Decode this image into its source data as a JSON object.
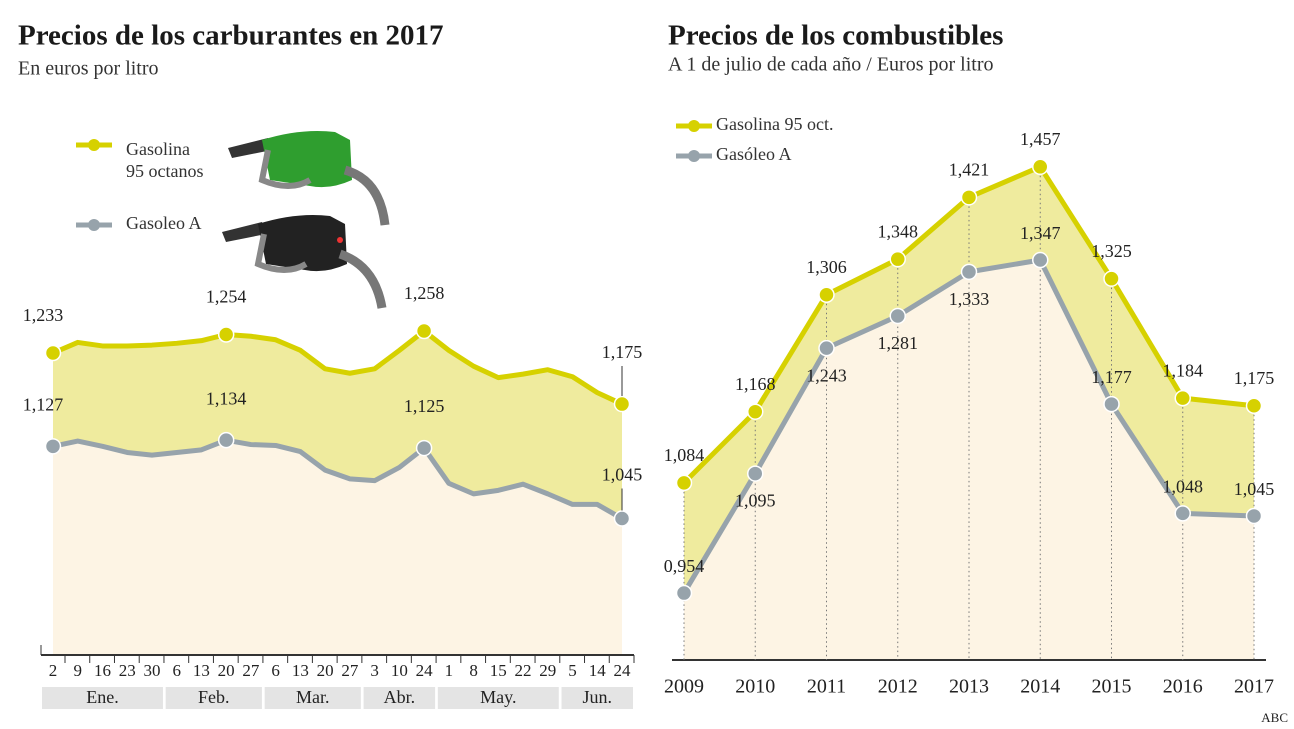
{
  "chart_data": [
    {
      "type": "line",
      "title": "Precios de los carburantes en 2017",
      "subtitle": "En euros por litro",
      "months": [
        {
          "name": "Ene.",
          "days": [
            2,
            9,
            16,
            23,
            30
          ]
        },
        {
          "name": "Feb.",
          "days": [
            6,
            13,
            20,
            27
          ]
        },
        {
          "name": "Mar.",
          "days": [
            6,
            13,
            20,
            27
          ]
        },
        {
          "name": "Abr.",
          "days": [
            3,
            10,
            24
          ]
        },
        {
          "name": "May.",
          "days": [
            1,
            8,
            15,
            22,
            29
          ]
        },
        {
          "name": "Jun.",
          "days": [
            5,
            14,
            24
          ]
        }
      ],
      "series": [
        {
          "name": "Gasolina 95 octanos",
          "color": "#d6d100",
          "values": [
            1.233,
            1.245,
            1.241,
            1.241,
            1.242,
            1.244,
            1.247,
            1.254,
            1.252,
            1.248,
            1.236,
            1.215,
            1.21,
            1.215,
            1.236,
            1.258,
            1.236,
            1.218,
            1.205,
            1.209,
            1.214,
            1.206,
            1.188,
            1.175
          ],
          "value_labels": [
            "1,233",
            null,
            null,
            null,
            null,
            null,
            null,
            "1,254",
            null,
            null,
            null,
            null,
            null,
            null,
            null,
            "1,258",
            null,
            null,
            null,
            null,
            null,
            null,
            null,
            "1,175"
          ]
        },
        {
          "name": "Gasoleo A",
          "color": "#97a3ab",
          "values": [
            1.127,
            1.133,
            1.127,
            1.12,
            1.117,
            1.12,
            1.123,
            1.134,
            1.129,
            1.128,
            1.121,
            1.1,
            1.09,
            1.088,
            1.103,
            1.125,
            1.085,
            1.073,
            1.077,
            1.084,
            1.073,
            1.061,
            1.061,
            1.045
          ],
          "value_labels": [
            "1,127",
            null,
            null,
            null,
            null,
            null,
            null,
            "1,134",
            null,
            null,
            null,
            null,
            null,
            null,
            null,
            "1,125",
            null,
            null,
            null,
            null,
            null,
            null,
            null,
            "1,045"
          ]
        }
      ],
      "ylim": [
        0.89,
        1.3
      ]
    },
    {
      "type": "line",
      "title": "Precios de los combustibles",
      "subtitle": "A 1 de julio de cada año / Euros por litro",
      "categories": [
        2009,
        2010,
        2011,
        2012,
        2013,
        2014,
        2015,
        2016,
        2017
      ],
      "series": [
        {
          "name": "Gasolina 95 oct.",
          "color": "#d6d100",
          "values": [
            1.084,
            1.168,
            1.306,
            1.348,
            1.421,
            1.457,
            1.325,
            1.184,
            1.175
          ],
          "value_labels": [
            "1,084",
            "1,168",
            "1,306",
            "1,348",
            "1,421",
            "1,457",
            "1,325",
            "1,184",
            "1,175"
          ]
        },
        {
          "name": "Gasóleo A",
          "color": "#97a3ab",
          "values": [
            0.954,
            1.095,
            1.243,
            1.281,
            1.333,
            1.347,
            1.177,
            1.048,
            1.045
          ],
          "value_labels": [
            "0,954",
            "1,095",
            "1,243",
            "1,281",
            "1,333",
            "1,347",
            "1,177",
            "1,048",
            "1,045"
          ]
        }
      ],
      "ylim": [
        0.875,
        1.55
      ],
      "source": "ABC"
    }
  ]
}
